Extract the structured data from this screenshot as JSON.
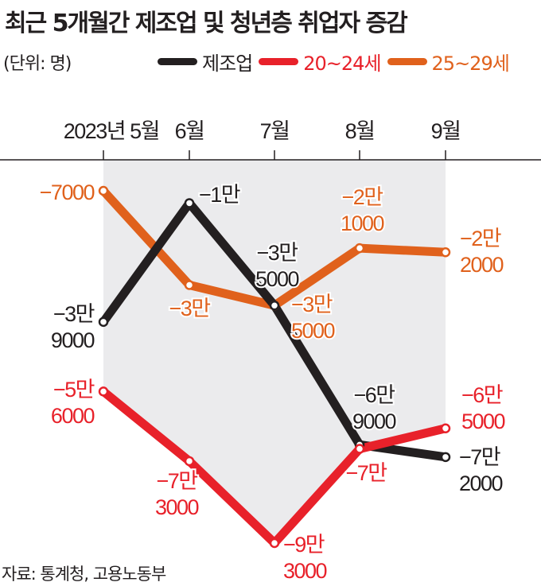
{
  "chart_data": {
    "type": "line",
    "title": "최근 5개월간 제조업 및 청년층 취업자 증감",
    "unit_label": "(단위: 명)",
    "categories": [
      "2023년 5월",
      "6월",
      "7월",
      "8월",
      "9월"
    ],
    "legend_placement": "top-right",
    "grid": false,
    "series": [
      {
        "name": "제조업",
        "color": "#231f20",
        "values": [
          -39000,
          -10000,
          -35000,
          -69000,
          -72000
        ],
        "labels": [
          [
            "−3만",
            "9000"
          ],
          [
            "−1만"
          ],
          [
            "−3만",
            "5000"
          ],
          [
            "−6만",
            "9000"
          ],
          [
            "−7만",
            "2000"
          ]
        ]
      },
      {
        "name": "20~24세",
        "color": "#e8212a",
        "values": [
          -56000,
          -73000,
          -93000,
          -70000,
          -65000
        ],
        "labels": [
          [
            "−5만",
            "6000"
          ],
          [
            "−7만",
            "3000"
          ],
          [
            "−9만",
            "3000"
          ],
          [
            "−7만"
          ],
          [
            "−6만",
            "5000"
          ]
        ]
      },
      {
        "name": "25~29세",
        "color": "#e0611c",
        "values": [
          -7000,
          -30000,
          -35000,
          -21000,
          -22000
        ],
        "labels": [
          [
            "−7000"
          ],
          [
            "−3만"
          ],
          [
            "−3만",
            "5000"
          ],
          [
            "−2만",
            "1000"
          ],
          [
            "−2만",
            "2000"
          ]
        ]
      }
    ],
    "source": "자료: 통계청, 고용노동부"
  }
}
